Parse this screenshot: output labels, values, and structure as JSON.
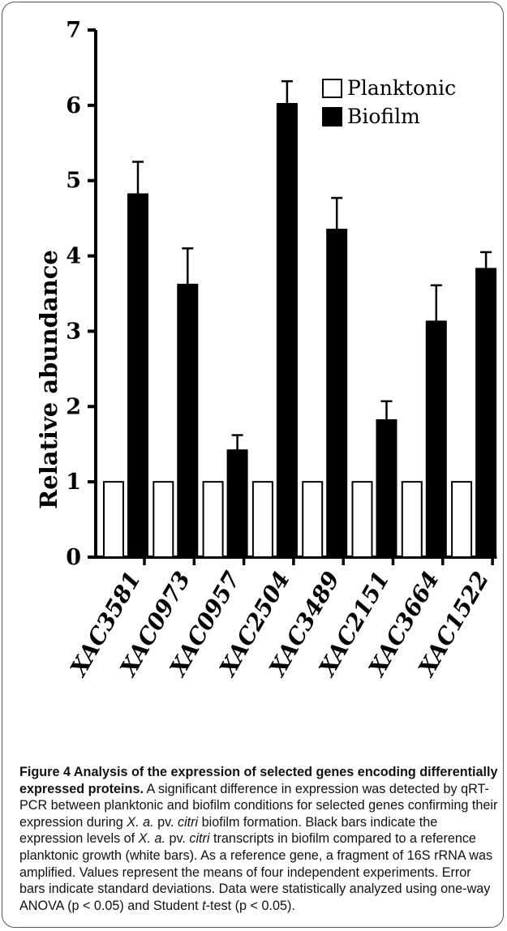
{
  "chart_data": {
    "type": "bar",
    "ylabel": "Relative abundance",
    "ylim": [
      0,
      7
    ],
    "yticks": [
      "0",
      "1",
      "2",
      "3",
      "4",
      "5",
      "6",
      "7"
    ],
    "categories": [
      "XAC3581",
      "XAC0973",
      "XAC0957",
      "XAC2504",
      "XAC3489",
      "XAC2151",
      "XAC3664",
      "XAC1522"
    ],
    "series": [
      {
        "name": "Planktonic",
        "color": "#ffffff",
        "values": [
          1,
          1,
          1,
          1,
          1,
          1,
          1,
          1
        ],
        "errors": [
          0,
          0,
          0,
          0,
          0,
          0,
          0,
          0
        ]
      },
      {
        "name": "Biofilm",
        "color": "#000000",
        "values": [
          4.82,
          3.62,
          1.42,
          6.02,
          4.35,
          1.82,
          3.13,
          3.83
        ],
        "errors": [
          0.43,
          0.48,
          0.2,
          0.3,
          0.42,
          0.25,
          0.48,
          0.22
        ]
      }
    ],
    "legend_position": "top-right"
  },
  "caption": {
    "title": "Figure 4 Analysis of the expression of selected genes encoding differentially expressed proteins.",
    "segments": [
      {
        "t": " A significant difference in expression was detected by qRT-PCR between planktonic and biofilm conditions for selected genes confirming their expression during ",
        "i": false
      },
      {
        "t": "X. a.",
        "i": true
      },
      {
        "t": " pv. ",
        "i": false
      },
      {
        "t": "citri",
        "i": true
      },
      {
        "t": " biofilm formation. Black bars indicate the expression levels of ",
        "i": false
      },
      {
        "t": "X. a.",
        "i": true
      },
      {
        "t": " pv. ",
        "i": false
      },
      {
        "t": "citri",
        "i": true
      },
      {
        "t": " transcripts in biofilm compared to a reference planktonic growth (white bars). As a reference gene, a fragment of 16S rRNA was amplified. Values represent the means of four independent experiments. Error bars indicate standard deviations. Data were statistically analyzed using one-way ANOVA (p < 0.05) and Student ",
        "i": false
      },
      {
        "t": "t",
        "i": true
      },
      {
        "t": "-test (p < 0.05).",
        "i": false
      }
    ]
  }
}
